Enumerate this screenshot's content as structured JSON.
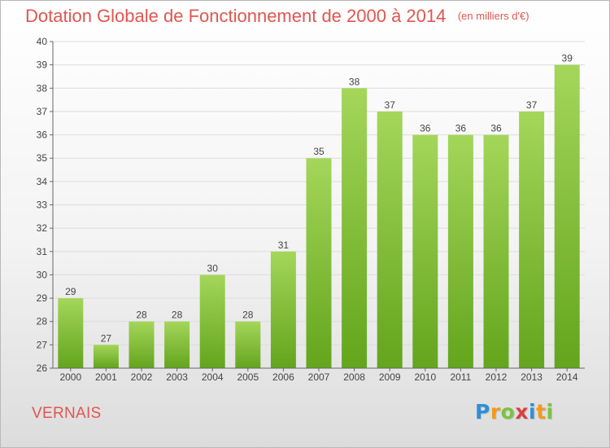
{
  "header": {
    "title": "Dotation Globale de Fonctionnement de 2000 à 2014",
    "unit": "(en milliers d'€)"
  },
  "footer": {
    "commune": "VERNAIS",
    "brand_letters": [
      "P",
      "r",
      "o",
      "x",
      "i",
      "t",
      "i"
    ],
    "brand_colors": [
      "#2f8fd6",
      "#f39a1c",
      "#7cc242",
      "#d94040",
      "#2f8fd6",
      "#f39a1c",
      "#7cc242"
    ]
  },
  "colors": {
    "title": "#e0564f",
    "bar_top": "#a4d65a",
    "bar_bottom": "#63a51c",
    "axis": "#666666",
    "grid": "#dddddd"
  },
  "chart_data": {
    "type": "bar",
    "categories": [
      "2000",
      "2001",
      "2002",
      "2003",
      "2004",
      "2005",
      "2006",
      "2007",
      "2008",
      "2009",
      "2010",
      "2011",
      "2012",
      "2013",
      "2014"
    ],
    "values": [
      29,
      27,
      28,
      28,
      30,
      28,
      31,
      35,
      38,
      37,
      36,
      36,
      36,
      37,
      39
    ],
    "ylim": [
      26,
      40
    ],
    "yticks": [
      26,
      27,
      28,
      29,
      30,
      31,
      32,
      33,
      34,
      35,
      36,
      37,
      38,
      39,
      40
    ],
    "grid": true,
    "data_labels": true
  }
}
